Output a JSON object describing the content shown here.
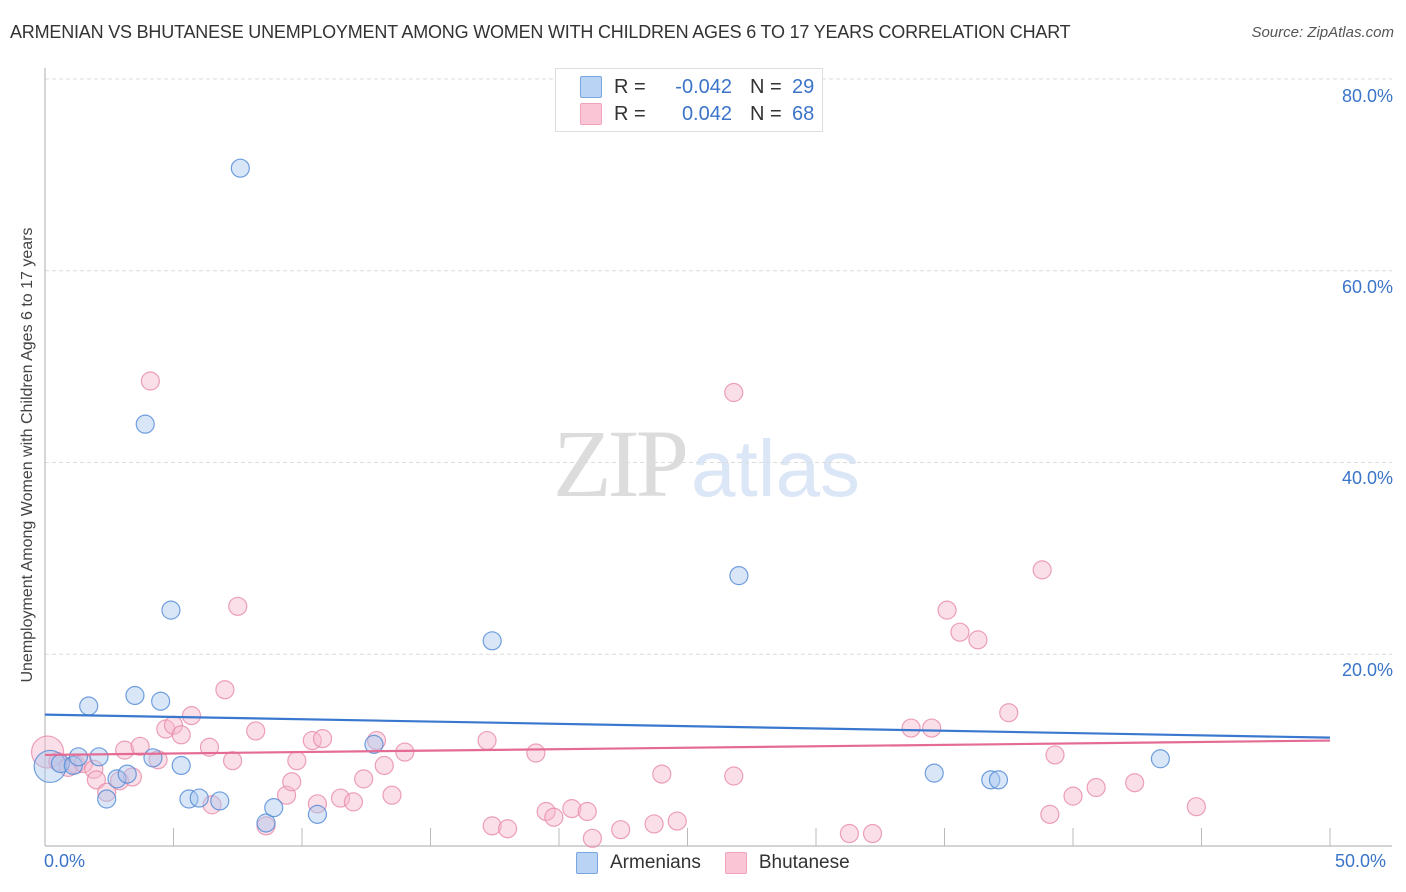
{
  "header": {
    "title": "ARMENIAN VS BHUTANESE UNEMPLOYMENT AMONG WOMEN WITH CHILDREN AGES 6 TO 17 YEARS CORRELATION CHART",
    "source": "Source: ZipAtlas.com"
  },
  "watermark": {
    "zip": "ZIP",
    "atlas": "atlas"
  },
  "legend": {
    "rows": [
      {
        "series": "Armenians",
        "r_label": "R =",
        "r_value": "-0.042",
        "n_label": "N =",
        "n_value": "29",
        "color": "#a9c8f0"
      },
      {
        "series": "Bhutanese",
        "r_label": "R =",
        "r_value": "0.042",
        "n_label": "N =",
        "n_value": "68",
        "color": "#f7b8cb"
      }
    ]
  },
  "bottom_legend": {
    "items": [
      {
        "label": "Armenians",
        "color": "#a9c8f0",
        "border": "#6a9ad8"
      },
      {
        "label": "Bhutanese",
        "color": "#f7b8cb",
        "border": "#e691ab"
      }
    ]
  },
  "axes": {
    "y_label": "Unemployment Among Women with Children Ages 6 to 17 years",
    "y_ticks": [
      "80.0%",
      "60.0%",
      "40.0%",
      "20.0%"
    ],
    "x_ticks": [
      "0.0%",
      "50.0%"
    ]
  },
  "colors": {
    "armenians_line": "#3a78cf",
    "bhutanese_line": "#e46b93",
    "armenians_fill": "#a9c8f0",
    "bhutanese_fill": "#f7b8cb",
    "tick_text": "#3b74c8"
  },
  "chart_data": {
    "type": "scatter",
    "title": "ARMENIAN VS BHUTANESE UNEMPLOYMENT AMONG WOMEN WITH CHILDREN AGES 6 TO 17 YEARS CORRELATION CHART",
    "xlabel": "",
    "ylabel": "Unemployment Among Women with Children Ages 6 to 17 years",
    "xlim": [
      0,
      50
    ],
    "ylim": [
      0,
      80
    ],
    "x_unit": "%",
    "y_unit": "%",
    "grid": "horizontal dashed at 20, 40, 60, 80",
    "legend_position": "top-center (stats) and bottom-center (series)",
    "series": [
      {
        "name": "Armenians",
        "R": -0.042,
        "N": 29,
        "trend": {
          "x": [
            0,
            50
          ],
          "y": [
            13.7,
            11.3
          ]
        },
        "points": [
          {
            "x": 0.2,
            "y": 8.3
          },
          {
            "x": 0.6,
            "y": 8.6
          },
          {
            "x": 1.1,
            "y": 8.4
          },
          {
            "x": 1.3,
            "y": 9.3
          },
          {
            "x": 1.7,
            "y": 14.6
          },
          {
            "x": 2.1,
            "y": 9.3
          },
          {
            "x": 2.4,
            "y": 4.9
          },
          {
            "x": 2.8,
            "y": 7.0
          },
          {
            "x": 3.2,
            "y": 7.5
          },
          {
            "x": 3.5,
            "y": 15.7
          },
          {
            "x": 3.9,
            "y": 44.0
          },
          {
            "x": 4.2,
            "y": 9.2
          },
          {
            "x": 4.5,
            "y": 15.1
          },
          {
            "x": 4.9,
            "y": 24.6
          },
          {
            "x": 5.3,
            "y": 8.4
          },
          {
            "x": 5.6,
            "y": 4.9
          },
          {
            "x": 6.0,
            "y": 5.0
          },
          {
            "x": 6.8,
            "y": 4.7
          },
          {
            "x": 7.6,
            "y": 70.7
          },
          {
            "x": 8.6,
            "y": 2.4
          },
          {
            "x": 8.9,
            "y": 4.0
          },
          {
            "x": 10.6,
            "y": 3.3
          },
          {
            "x": 12.8,
            "y": 10.6
          },
          {
            "x": 17.4,
            "y": 21.4
          },
          {
            "x": 27.0,
            "y": 28.2
          },
          {
            "x": 34.6,
            "y": 7.6
          },
          {
            "x": 36.8,
            "y": 6.9
          },
          {
            "x": 37.1,
            "y": 6.9
          },
          {
            "x": 43.4,
            "y": 9.1
          }
        ]
      },
      {
        "name": "Bhutanese",
        "R": 0.042,
        "N": 68,
        "trend": {
          "x": [
            0,
            50
          ],
          "y": [
            9.5,
            11.0
          ]
        },
        "points": [
          {
            "x": 0.1,
            "y": 9.8
          },
          {
            "x": 0.5,
            "y": 8.8
          },
          {
            "x": 0.9,
            "y": 8.2
          },
          {
            "x": 1.2,
            "y": 8.5
          },
          {
            "x": 1.5,
            "y": 8.6
          },
          {
            "x": 1.9,
            "y": 8.0
          },
          {
            "x": 2.0,
            "y": 6.9
          },
          {
            "x": 2.4,
            "y": 5.6
          },
          {
            "x": 2.9,
            "y": 6.8
          },
          {
            "x": 3.1,
            "y": 10.0
          },
          {
            "x": 3.4,
            "y": 7.2
          },
          {
            "x": 3.7,
            "y": 10.4
          },
          {
            "x": 4.1,
            "y": 48.5
          },
          {
            "x": 4.4,
            "y": 9.0
          },
          {
            "x": 4.7,
            "y": 12.2
          },
          {
            "x": 5.0,
            "y": 12.6
          },
          {
            "x": 5.3,
            "y": 11.6
          },
          {
            "x": 5.7,
            "y": 13.6
          },
          {
            "x": 6.4,
            "y": 10.3
          },
          {
            "x": 6.5,
            "y": 4.3
          },
          {
            "x": 7.0,
            "y": 16.3
          },
          {
            "x": 7.3,
            "y": 8.9
          },
          {
            "x": 7.5,
            "y": 25.0
          },
          {
            "x": 8.2,
            "y": 12.0
          },
          {
            "x": 8.6,
            "y": 2.1
          },
          {
            "x": 9.4,
            "y": 5.3
          },
          {
            "x": 9.6,
            "y": 6.7
          },
          {
            "x": 9.8,
            "y": 8.9
          },
          {
            "x": 10.4,
            "y": 11.0
          },
          {
            "x": 10.6,
            "y": 4.4
          },
          {
            "x": 10.8,
            "y": 11.2
          },
          {
            "x": 11.5,
            "y": 5.0
          },
          {
            "x": 12.0,
            "y": 4.6
          },
          {
            "x": 12.4,
            "y": 7.0
          },
          {
            "x": 12.9,
            "y": 11.0
          },
          {
            "x": 13.2,
            "y": 8.4
          },
          {
            "x": 13.5,
            "y": 5.3
          },
          {
            "x": 14.0,
            "y": 9.8
          },
          {
            "x": 17.2,
            "y": 11.0
          },
          {
            "x": 17.4,
            "y": 2.1
          },
          {
            "x": 18.0,
            "y": 1.8
          },
          {
            "x": 19.1,
            "y": 9.7
          },
          {
            "x": 19.5,
            "y": 3.6
          },
          {
            "x": 19.8,
            "y": 3.0
          },
          {
            "x": 20.5,
            "y": 3.9
          },
          {
            "x": 21.1,
            "y": 3.6
          },
          {
            "x": 21.3,
            "y": 0.8
          },
          {
            "x": 22.4,
            "y": 1.7
          },
          {
            "x": 23.7,
            "y": 2.3
          },
          {
            "x": 24.0,
            "y": 7.5
          },
          {
            "x": 24.6,
            "y": 2.6
          },
          {
            "x": 26.8,
            "y": 47.3
          },
          {
            "x": 26.8,
            "y": 7.3
          },
          {
            "x": 31.3,
            "y": 1.3
          },
          {
            "x": 32.2,
            "y": 1.3
          },
          {
            "x": 33.7,
            "y": 12.3
          },
          {
            "x": 34.5,
            "y": 12.3
          },
          {
            "x": 35.1,
            "y": 24.6
          },
          {
            "x": 35.6,
            "y": 22.3
          },
          {
            "x": 36.3,
            "y": 21.5
          },
          {
            "x": 37.5,
            "y": 13.9
          },
          {
            "x": 38.8,
            "y": 28.8
          },
          {
            "x": 39.1,
            "y": 3.3
          },
          {
            "x": 39.3,
            "y": 9.5
          },
          {
            "x": 40.0,
            "y": 5.2
          },
          {
            "x": 40.9,
            "y": 6.1
          },
          {
            "x": 42.4,
            "y": 6.6
          },
          {
            "x": 44.8,
            "y": 4.1
          }
        ]
      }
    ]
  }
}
